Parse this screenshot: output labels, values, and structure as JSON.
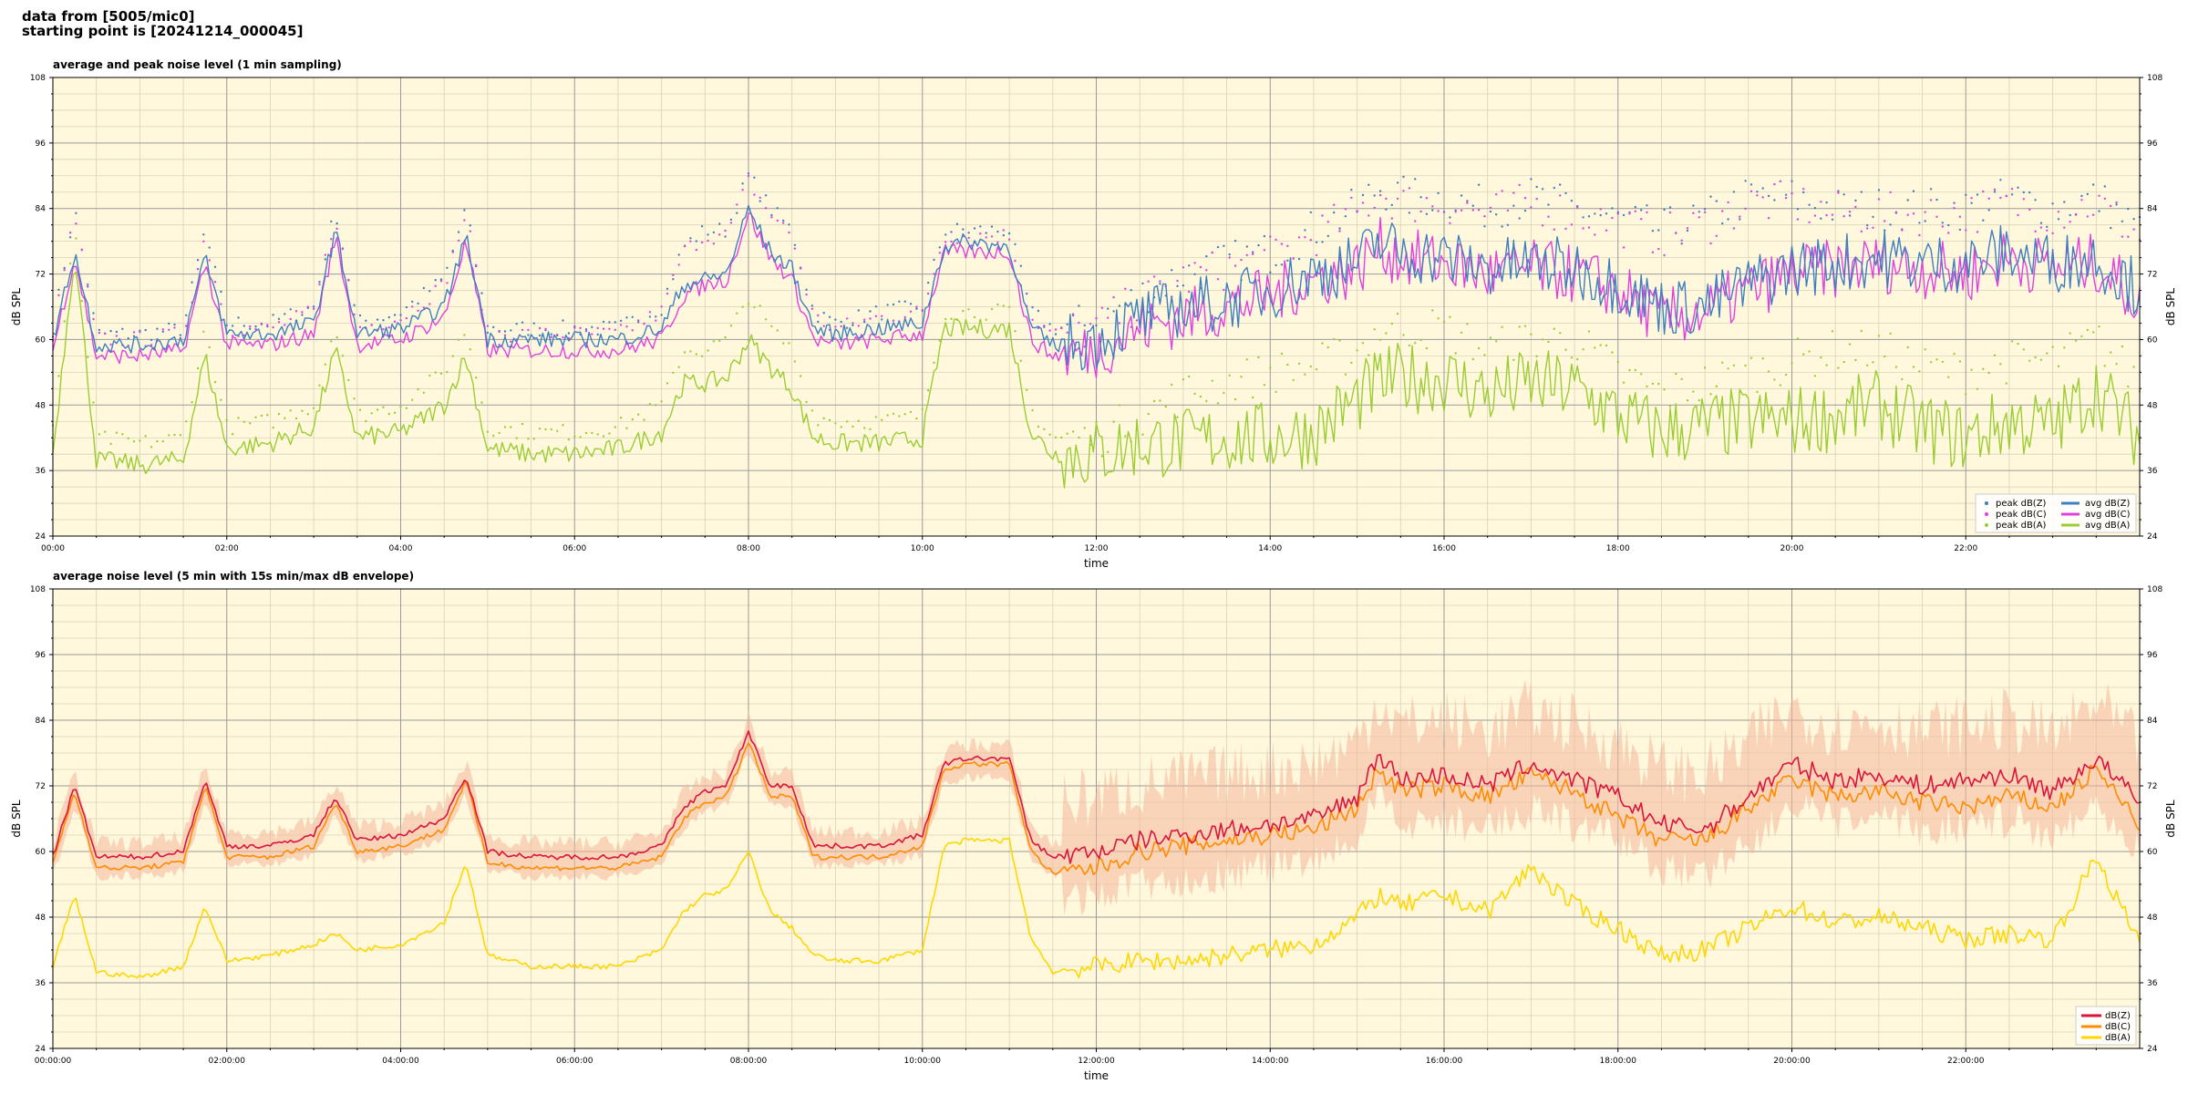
{
  "header": {
    "line1": "data from [5005/mic0]",
    "line2": "starting point is [20241214_000045]"
  },
  "colors": {
    "plot_bg": "#fff8dc",
    "grid_major": "#9a9a9a",
    "grid_minor": "#d8d2b8",
    "dBZ_top": "#3f7fbf",
    "dBC_top": "#e040e0",
    "dBA_top": "#9acd32",
    "dBZ_bottom": "#dc143c",
    "dBC_bottom": "#ff8c00",
    "dBA_bottom": "#ffd700",
    "envelope": "#f4b79a"
  },
  "chart_data": [
    {
      "type": "line",
      "title": "average and peak noise level (1 min sampling)",
      "xlabel": "time",
      "ylabel": "dB SPL",
      "ylim": [
        24,
        108
      ],
      "yticks": [
        "24",
        "36",
        "48",
        "60",
        "72",
        "84",
        "96",
        "108"
      ],
      "xlim_hours": [
        0,
        24
      ],
      "xticks": [
        "00:00",
        "02:00",
        "04:00",
        "06:00",
        "08:00",
        "10:00",
        "12:00",
        "14:00",
        "16:00",
        "18:00",
        "20:00",
        "22:00"
      ],
      "grid": true,
      "legend_position": "bottom-right",
      "legend": [
        "peak dB(Z)",
        "peak dB(C)",
        "peak dB(A)",
        "avg dB(Z)",
        "avg dB(C)",
        "avg dB(A)"
      ],
      "x_hours": [
        0,
        0.25,
        0.5,
        1,
        1.5,
        1.75,
        2,
        2.5,
        3,
        3.25,
        3.5,
        4,
        4.5,
        4.75,
        5,
        5.5,
        6,
        6.5,
        7,
        7.25,
        7.5,
        7.75,
        8,
        8.25,
        8.5,
        8.75,
        9,
        9.5,
        10,
        10.25,
        10.5,
        11,
        11.25,
        11.5,
        12,
        12.5,
        13,
        13.5,
        14,
        14.5,
        15,
        15.25,
        15.5,
        16,
        16.5,
        17,
        17.5,
        18,
        18.5,
        19,
        19.5,
        20,
        20.5,
        21,
        21.5,
        22,
        22.5,
        23,
        23.5,
        24
      ],
      "series": [
        {
          "name": "avg dB(Z)",
          "values": [
            60,
            76,
            59,
            59,
            60,
            75,
            61,
            61,
            63,
            80,
            61,
            62,
            66,
            79,
            60,
            60,
            60,
            60,
            62,
            70,
            71,
            72,
            84,
            76,
            73,
            62,
            61,
            62,
            63,
            77,
            78,
            77,
            62,
            59,
            60,
            64,
            66,
            67,
            69,
            72,
            74,
            78,
            76,
            75,
            73,
            74,
            73,
            70,
            66,
            66,
            70,
            73,
            74,
            75,
            74,
            74,
            76,
            74,
            75,
            69
          ]
        },
        {
          "name": "avg dB(C)",
          "values": [
            58,
            75,
            57,
            57,
            58,
            74,
            59,
            59,
            61,
            79,
            59,
            60,
            64,
            78,
            58,
            58,
            58,
            58,
            60,
            68,
            70,
            71,
            83,
            75,
            71,
            60,
            59,
            60,
            61,
            76,
            76,
            76,
            60,
            57,
            58,
            62,
            64,
            66,
            68,
            71,
            73,
            77,
            75,
            74,
            72,
            73,
            72,
            69,
            64,
            65,
            69,
            72,
            73,
            74,
            73,
            72,
            75,
            73,
            74,
            67
          ]
        },
        {
          "name": "avg dB(A)",
          "values": [
            39,
            76,
            38,
            37,
            38,
            57,
            40,
            41,
            44,
            58,
            42,
            43,
            48,
            57,
            40,
            39,
            39,
            40,
            43,
            52,
            52,
            53,
            60,
            55,
            51,
            42,
            41,
            41,
            42,
            62,
            62,
            62,
            43,
            39,
            39,
            41,
            41,
            42,
            42,
            43,
            49,
            52,
            53,
            53,
            50,
            52,
            51,
            46,
            43,
            44,
            45,
            45,
            46,
            48,
            44,
            42,
            45,
            44,
            51,
            42
          ]
        },
        {
          "name": "peak dB(Z)",
          "values": [
            62,
            84,
            61,
            61,
            62,
            80,
            63,
            63,
            66,
            84,
            63,
            65,
            71,
            84,
            62,
            62,
            62,
            62,
            66,
            77,
            80,
            80,
            90,
            84,
            80,
            65,
            63,
            65,
            66,
            80,
            80,
            80,
            65,
            62,
            63,
            68,
            72,
            74,
            76,
            80,
            84,
            88,
            86,
            86,
            84,
            86,
            84,
            82,
            80,
            82,
            86,
            86,
            84,
            84,
            84,
            84,
            86,
            84,
            86,
            80
          ]
        },
        {
          "name": "peak dB(C)",
          "values": [
            61,
            83,
            60,
            60,
            61,
            79,
            62,
            62,
            65,
            83,
            62,
            64,
            70,
            83,
            61,
            61,
            61,
            61,
            65,
            76,
            79,
            79,
            89,
            83,
            79,
            64,
            62,
            64,
            65,
            79,
            79,
            79,
            64,
            61,
            62,
            67,
            71,
            73,
            75,
            79,
            83,
            87,
            85,
            85,
            83,
            85,
            83,
            81,
            79,
            81,
            85,
            85,
            83,
            83,
            83,
            83,
            85,
            83,
            85,
            79
          ]
        },
        {
          "name": "peak dB(A)",
          "values": [
            44,
            80,
            42,
            41,
            42,
            62,
            44,
            45,
            48,
            63,
            46,
            48,
            54,
            62,
            44,
            43,
            43,
            44,
            48,
            58,
            58,
            60,
            68,
            62,
            58,
            46,
            45,
            45,
            46,
            65,
            65,
            65,
            47,
            42,
            42,
            46,
            50,
            52,
            54,
            55,
            58,
            62,
            62,
            62,
            58,
            60,
            60,
            54,
            50,
            52,
            54,
            56,
            58,
            58,
            55,
            54,
            56,
            56,
            60,
            52
          ]
        }
      ]
    },
    {
      "type": "line",
      "title": "average noise level (5 min with 15s min/max dB envelope)",
      "xlabel": "time",
      "ylabel": "dB SPL",
      "ylim": [
        24,
        108
      ],
      "yticks": [
        "24",
        "36",
        "48",
        "60",
        "72",
        "84",
        "96",
        "108"
      ],
      "xlim_hours": [
        0,
        24
      ],
      "xticks": [
        "00:00:00",
        "02:00:00",
        "04:00:00",
        "06:00:00",
        "08:00:00",
        "10:00:00",
        "12:00:00",
        "14:00:00",
        "16:00:00",
        "18:00:00",
        "20:00:00",
        "22:00:00"
      ],
      "grid": true,
      "legend_position": "bottom-right",
      "legend": [
        "dB(Z)",
        "dB(C)",
        "dB(A)"
      ],
      "x_hours": [
        0,
        0.25,
        0.5,
        1,
        1.5,
        1.75,
        2,
        2.5,
        3,
        3.25,
        3.5,
        4,
        4.5,
        4.75,
        5,
        5.5,
        6,
        6.5,
        7,
        7.25,
        7.5,
        7.75,
        8,
        8.25,
        8.5,
        8.75,
        9,
        9.5,
        10,
        10.25,
        10.5,
        11,
        11.25,
        11.5,
        12,
        12.5,
        13,
        13.5,
        14,
        14.5,
        15,
        15.25,
        15.5,
        16,
        16.5,
        17,
        17.5,
        18,
        18.5,
        19,
        19.5,
        20,
        20.5,
        21,
        21.5,
        22,
        22.5,
        23,
        23.5,
        24
      ],
      "series": [
        {
          "name": "dB(Z)",
          "values": [
            59,
            72,
            59,
            59,
            60,
            73,
            61,
            61,
            63,
            70,
            62,
            63,
            66,
            74,
            60,
            59,
            59,
            59,
            61,
            68,
            71,
            72,
            82,
            72,
            72,
            61,
            61,
            61,
            63,
            76,
            77,
            77,
            62,
            59,
            60,
            62,
            63,
            64,
            65,
            66,
            70,
            78,
            73,
            74,
            72,
            76,
            73,
            70,
            65,
            64,
            70,
            76,
            73,
            74,
            72,
            73,
            74,
            71,
            77,
            69
          ]
        },
        {
          "name": "dB(C)",
          "values": [
            58,
            71,
            57,
            57,
            58,
            72,
            59,
            59,
            61,
            69,
            60,
            61,
            64,
            73,
            58,
            57,
            57,
            57,
            59,
            66,
            69,
            70,
            80,
            70,
            70,
            59,
            59,
            59,
            61,
            75,
            76,
            76,
            60,
            56,
            57,
            60,
            61,
            62,
            63,
            64,
            68,
            75,
            71,
            72,
            70,
            74,
            71,
            66,
            62,
            62,
            68,
            73,
            70,
            71,
            69,
            68,
            70,
            68,
            75,
            65
          ]
        },
        {
          "name": "dB(A)",
          "values": [
            39,
            52,
            38,
            37,
            39,
            50,
            40,
            41,
            43,
            45,
            42,
            43,
            47,
            58,
            41,
            39,
            39,
            39,
            42,
            49,
            52,
            53,
            60,
            49,
            46,
            41,
            40,
            40,
            42,
            61,
            62,
            62,
            44,
            38,
            39,
            40,
            40,
            41,
            42,
            43,
            48,
            52,
            50,
            52,
            49,
            57,
            50,
            46,
            41,
            42,
            46,
            50,
            47,
            48,
            46,
            44,
            45,
            44,
            59,
            43
          ]
        }
      ]
    }
  ]
}
